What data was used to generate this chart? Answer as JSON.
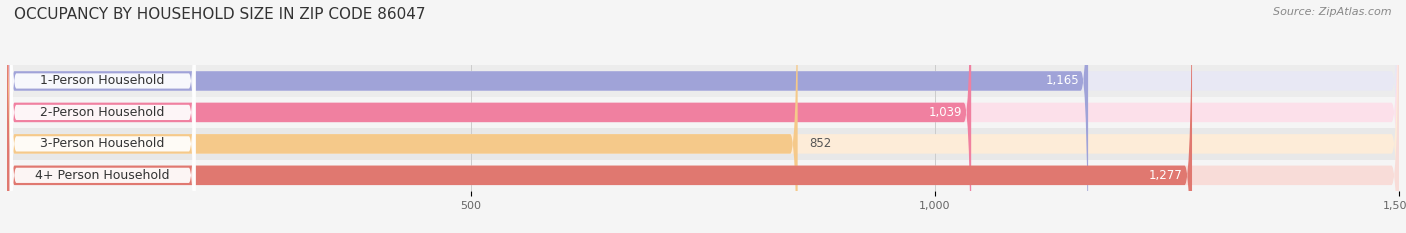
{
  "title": "OCCUPANCY BY HOUSEHOLD SIZE IN ZIP CODE 86047",
  "source": "Source: ZipAtlas.com",
  "categories": [
    "1-Person Household",
    "2-Person Household",
    "3-Person Household",
    "4+ Person Household"
  ],
  "values": [
    1165,
    1039,
    852,
    1277
  ],
  "bar_colors": [
    "#a0a3d8",
    "#f080a0",
    "#f5c98a",
    "#e07870"
  ],
  "bg_colors": [
    "#e8e8f4",
    "#fce0ea",
    "#fdecd8",
    "#f8dcd8"
  ],
  "xlim": [
    0,
    1500
  ],
  "xticks": [
    500,
    1000,
    1500
  ],
  "bar_height": 0.62,
  "figsize": [
    14.06,
    2.33
  ],
  "dpi": 100,
  "background_color": "#f5f5f5",
  "row_bg_colors": [
    "#eeeeee",
    "#ffffff",
    "#eeeeee",
    "#ffffff"
  ],
  "title_fontsize": 11,
  "source_fontsize": 8,
  "label_fontsize": 9,
  "value_fontsize": 8.5,
  "tick_fontsize": 8
}
